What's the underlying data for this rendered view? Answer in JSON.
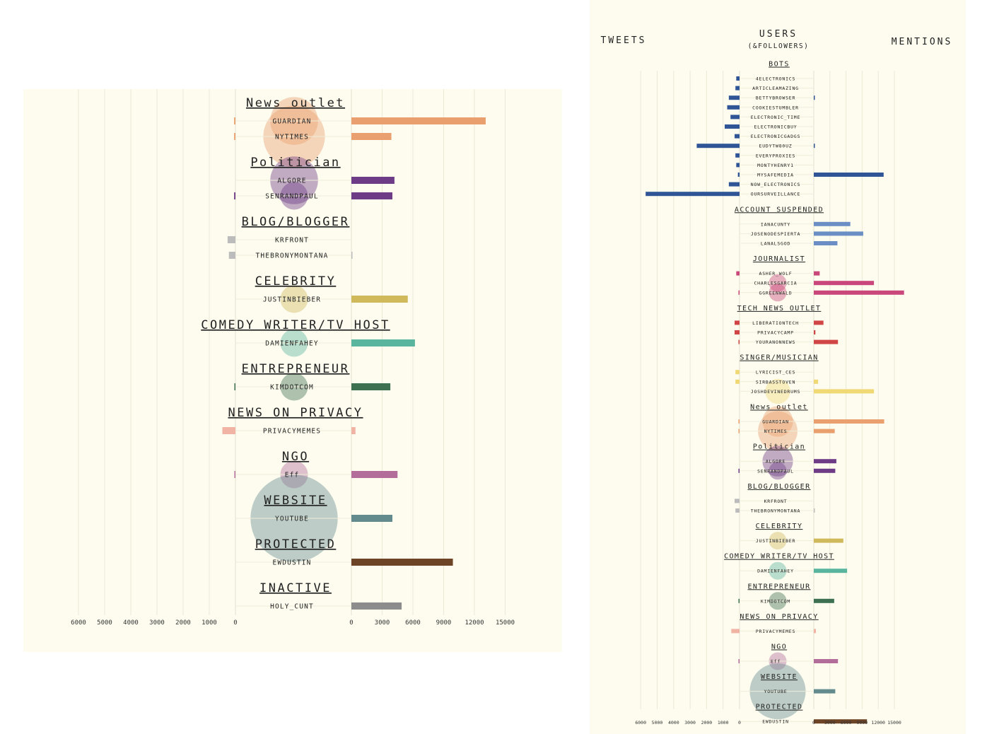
{
  "header": {
    "tweets": "TWEETS",
    "users": "USERS",
    "users_sub": "(&FOLLOWERS)",
    "mentions": "MENTIONS"
  },
  "axes": {
    "tweets_ticks": [
      "6000",
      "5000",
      "4000",
      "3000",
      "2000",
      "1000",
      "0"
    ],
    "mentions_ticks": [
      "0",
      "3000",
      "6000",
      "9000",
      "12000",
      "15000"
    ]
  },
  "chart_data": [
    {
      "type": "bar",
      "title": "",
      "layout": "butterfly",
      "left_axis": {
        "label": "TWEETS",
        "range": [
          0,
          6000
        ],
        "direction": "reversed"
      },
      "right_axis": {
        "label": "MENTIONS",
        "range": [
          0,
          15000
        ]
      },
      "grid": true,
      "groups": [
        {
          "category": "BOTS",
          "color": "#2f5597",
          "users": [
            {
              "name": "4ELECTRONICS",
              "tweets": 200,
              "mentions": 0,
              "followers": 0
            },
            {
              "name": "ARTICLEAMAZING",
              "tweets": 250,
              "mentions": 0,
              "followers": 0
            },
            {
              "name": "BETTYBROWSER",
              "tweets": 650,
              "mentions": 50,
              "followers": 0
            },
            {
              "name": "COOKIESTUMBLER",
              "tweets": 750,
              "mentions": 0,
              "followers": 0
            },
            {
              "name": "ELECTRONIC_TIME",
              "tweets": 550,
              "mentions": 0,
              "followers": 0
            },
            {
              "name": "ELECTRONICBUY",
              "tweets": 900,
              "mentions": 0,
              "followers": 0
            },
            {
              "name": "ELECTRONICGADGS",
              "tweets": 300,
              "mentions": 0,
              "followers": 0
            },
            {
              "name": "EUDYTW80UZ",
              "tweets": 2600,
              "mentions": 50,
              "followers": 0
            },
            {
              "name": "EVERYPROXIES",
              "tweets": 250,
              "mentions": 0,
              "followers": 0
            },
            {
              "name": "MONTYHENRY1",
              "tweets": 200,
              "mentions": 0,
              "followers": 0
            },
            {
              "name": "MYSAFEMEDIA",
              "tweets": 100,
              "mentions": 13000,
              "followers": 0
            },
            {
              "name": "NOW_ELECTRONICS",
              "tweets": 650,
              "mentions": 0,
              "followers": 0
            },
            {
              "name": "OURSURVEILLANCE",
              "tweets": 5700,
              "mentions": 0,
              "followers": 0
            }
          ]
        },
        {
          "category": "ACCOUNT SUSPENDED",
          "color": "#6b8fc4",
          "users": [
            {
              "name": "IANACUNTY",
              "tweets": 0,
              "mentions": 6800,
              "followers": 0
            },
            {
              "name": "JOSENODESPIERTA",
              "tweets": 0,
              "mentions": 9200,
              "followers": 0
            },
            {
              "name": "LANALSGOD",
              "tweets": 0,
              "mentions": 4400,
              "followers": 0
            }
          ]
        },
        {
          "category": "JOURNALIST",
          "color": "#c9477a",
          "users": [
            {
              "name": "ASHER_WOLF",
              "tweets": 200,
              "mentions": 1100,
              "followers": 0
            },
            {
              "name": "CHARLESGARCIA",
              "tweets": 0,
              "mentions": 11200,
              "followers": 1
            },
            {
              "name": "GGREENWALD",
              "tweets": 50,
              "mentions": 16800,
              "followers": 1
            }
          ]
        },
        {
          "category": "TECH NEWS OUTLET",
          "color": "#d04545",
          "users": [
            {
              "name": "LIBERATIONTECH",
              "tweets": 300,
              "mentions": 1800,
              "followers": 0
            },
            {
              "name": "PRIVACYCAMP",
              "tweets": 300,
              "mentions": 300,
              "followers": 0
            },
            {
              "name": "YOURANONNEWS",
              "tweets": 50,
              "mentions": 4500,
              "followers": 0
            }
          ]
        },
        {
          "category": "SINGER/MUSICIAN",
          "color": "#f0d874",
          "users": [
            {
              "name": "LYRICIST_CES",
              "tweets": 250,
              "mentions": 0,
              "followers": 0
            },
            {
              "name": "SIRBASSTOVEN",
              "tweets": 250,
              "mentions": 800,
              "followers": 0
            },
            {
              "name": "JOSHDEVINEDRUMS",
              "tweets": 0,
              "mentions": 11200,
              "followers": 2
            }
          ]
        },
        {
          "category": "News outlet",
          "color": "#e9a06e",
          "users": [
            {
              "name": "GUARDIAN",
              "tweets": 50,
              "mentions": 13100,
              "followers": 3
            },
            {
              "name": "NYTIMES",
              "tweets": 50,
              "mentions": 3900,
              "followers": 5
            }
          ]
        },
        {
          "category": "Politician",
          "color": "#6e3b86",
          "users": [
            {
              "name": "ALGORE",
              "tweets": 0,
              "mentions": 4200,
              "followers": 3
            },
            {
              "name": "SENRANDPAUL",
              "tweets": 50,
              "mentions": 4000,
              "followers": 1
            }
          ]
        },
        {
          "category": "BLOG/BLOGGER",
          "color": "#bcbcbc",
          "users": [
            {
              "name": "KRFRONT",
              "tweets": 300,
              "mentions": 0,
              "followers": 0
            },
            {
              "name": "THEBRONYMONTANA",
              "tweets": 250,
              "mentions": 50,
              "followers": 0
            }
          ]
        },
        {
          "category": "CELEBRITY",
          "color": "#d0b95a",
          "users": [
            {
              "name": "JUSTINBIEBER",
              "tweets": 0,
              "mentions": 5500,
              "followers": 1
            }
          ]
        },
        {
          "category": "COMEDY WRITER/TV HOST",
          "color": "#5ab59e",
          "users": [
            {
              "name": "DAMIENFAHEY",
              "tweets": 0,
              "mentions": 6200,
              "followers": 1
            }
          ]
        },
        {
          "category": "ENTREPRENEUR",
          "color": "#3d7050",
          "users": [
            {
              "name": "KIMDOTCOM",
              "tweets": 30,
              "mentions": 3800,
              "followers": 1
            }
          ]
        },
        {
          "category": "NEWS ON PRIVACY",
          "color": "#f1b3a3",
          "users": [
            {
              "name": "PRIVACYMEMES",
              "tweets": 500,
              "mentions": 400,
              "followers": 0
            }
          ]
        },
        {
          "category": "NGO",
          "color": "#b36d9b",
          "users": [
            {
              "name": "Eff",
              "tweets": 20,
              "mentions": 4500,
              "followers": 1
            }
          ]
        },
        {
          "category": "WEBSITE",
          "color": "#638b8e",
          "users": [
            {
              "name": "YOUTUBE",
              "tweets": 0,
              "mentions": 4000,
              "followers": 10
            }
          ]
        },
        {
          "category": "PROTECTED",
          "color": "#6e4427",
          "users": [
            {
              "name": "EWDUSTIN",
              "tweets": 0,
              "mentions": 9900,
              "followers": 0
            }
          ]
        },
        {
          "category": "INACTIVE",
          "color": "#8c8c8c",
          "users": [
            {
              "name": "HOLY_CUNT",
              "tweets": 0,
              "mentions": 4900,
              "followers": 0
            }
          ]
        }
      ]
    }
  ]
}
